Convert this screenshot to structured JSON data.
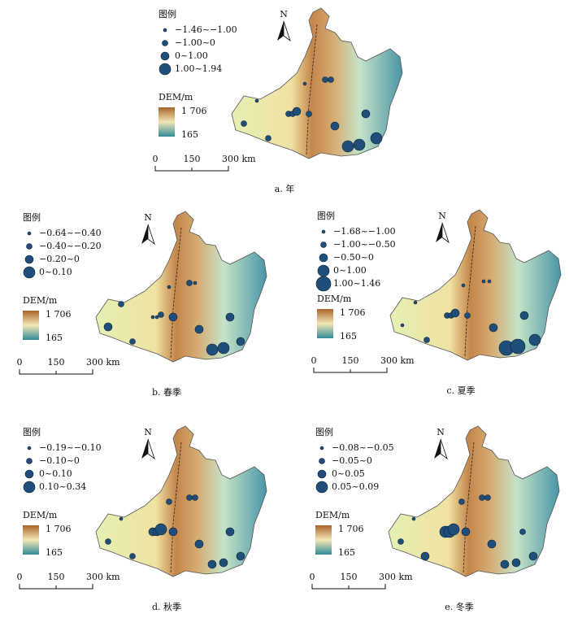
{
  "panels": [
    {
      "caption": "a. 年",
      "legend_title": "图例",
      "legend_items": [
        "−1.46~−1.00",
        "−1.00~0",
        "0~1.00",
        "1.00~1.94"
      ],
      "dem_title": "DEM/m",
      "dem_max": "1 706",
      "dem_min": "165",
      "scale_labels": [
        "0",
        "150",
        "300 km"
      ],
      "north": "N"
    },
    {
      "caption": "b.  春季",
      "legend_title": "图例",
      "legend_items": [
        "−0.64~−0.40",
        "−0.40~−0.20",
        "−0.20~0",
        "0~0.10"
      ],
      "dem_title": "DEM/m",
      "dem_max": "1 706",
      "dem_min": "165",
      "scale_labels": [
        "0",
        "150",
        "300 km"
      ],
      "north": "N"
    },
    {
      "caption": "c.  夏季",
      "legend_title": "图例",
      "legend_items": [
        "−1.68~−1.00",
        "−1.00~−0.50",
        "−0.50~0",
        "0~1.00",
        "1.00~1.46"
      ],
      "dem_title": "DEM/m",
      "dem_max": "1 706",
      "dem_min": "165",
      "scale_labels": [
        "0",
        "150",
        "300 km"
      ],
      "north": "N"
    },
    {
      "caption": "d.  秋季",
      "legend_title": "图例",
      "legend_items": [
        "−0.19~−0.10",
        "−0.10~0",
        "0~0.10",
        "0.10~0.34"
      ],
      "dem_title": "DEM/m",
      "dem_max": "1 706",
      "dem_min": "165",
      "scale_labels": [
        "0",
        "150",
        "300 km"
      ],
      "north": "N"
    },
    {
      "caption": "e.  冬季",
      "legend_title": "图例",
      "legend_items": [
        "−0.08~−0.05",
        "−0.05~0",
        "0~0.05",
        "0.05~0.09"
      ],
      "dem_title": "DEM/m",
      "dem_max": "1 706",
      "dem_min": "165",
      "scale_labels": [
        "0",
        "150",
        "300 km"
      ],
      "north": "N"
    }
  ]
}
